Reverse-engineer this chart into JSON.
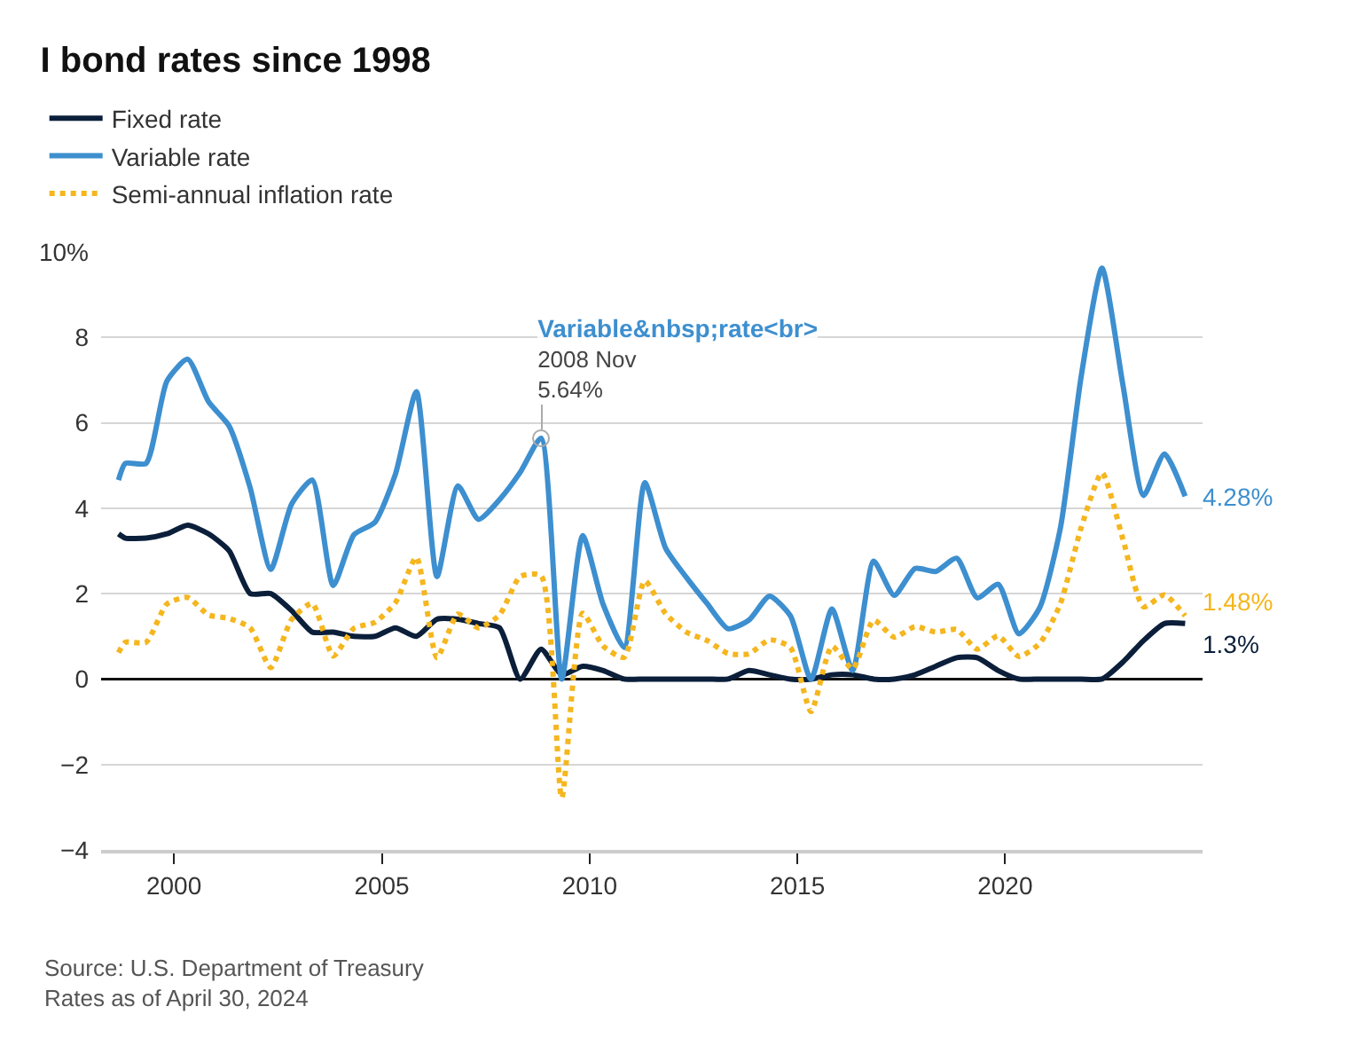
{
  "chart_data": {
    "type": "line",
    "title": "I bond rates since 1998",
    "x": [
      "1998-09",
      "1998-11",
      "1999-05",
      "1999-11",
      "2000-05",
      "2000-11",
      "2001-05",
      "2001-11",
      "2002-05",
      "2002-11",
      "2003-05",
      "2003-11",
      "2004-05",
      "2004-11",
      "2005-05",
      "2005-11",
      "2006-05",
      "2006-11",
      "2007-05",
      "2007-11",
      "2008-05",
      "2008-11",
      "2009-05",
      "2009-11",
      "2010-05",
      "2010-11",
      "2011-05",
      "2011-11",
      "2012-05",
      "2012-11",
      "2013-05",
      "2013-11",
      "2014-05",
      "2014-11",
      "2015-05",
      "2015-11",
      "2016-05",
      "2016-11",
      "2017-05",
      "2017-11",
      "2018-05",
      "2018-11",
      "2019-05",
      "2019-11",
      "2020-05",
      "2020-11",
      "2021-05",
      "2021-11",
      "2022-05",
      "2022-11",
      "2023-05",
      "2023-11",
      "2024-05"
    ],
    "series": [
      {
        "name": "Fixed rate",
        "color": "#0b1f3a",
        "line_style": "solid",
        "values": [
          3.4,
          3.3,
          3.3,
          3.4,
          3.6,
          3.4,
          3.0,
          2.0,
          2.0,
          1.6,
          1.1,
          1.1,
          1.0,
          1.0,
          1.2,
          1.0,
          1.4,
          1.4,
          1.3,
          1.2,
          0.0,
          0.7,
          0.1,
          0.3,
          0.2,
          0,
          0,
          0,
          0,
          0,
          0,
          0.2,
          0.1,
          0,
          0,
          0.1,
          0.1,
          0,
          0,
          0.1,
          0.3,
          0.5,
          0.5,
          0.2,
          0,
          0,
          0,
          0,
          0,
          0.4,
          0.9,
          1.3,
          1.3
        ]
      },
      {
        "name": "Variable rate",
        "color": "#3d8fcf",
        "line_style": "solid",
        "values": [
          4.66,
          5.05,
          5.05,
          6.98,
          7.49,
          6.49,
          5.92,
          4.48,
          2.57,
          4.1,
          4.66,
          2.19,
          3.38,
          3.67,
          4.8,
          6.73,
          2.4,
          4.52,
          3.74,
          4.2,
          4.84,
          5.64,
          0.0,
          3.36,
          1.74,
          0.74,
          4.6,
          3.06,
          2.38,
          1.76,
          1.18,
          1.38,
          1.94,
          1.48,
          0.0,
          1.64,
          0.2,
          2.76,
          1.96,
          2.59,
          2.52,
          2.83,
          1.9,
          2.22,
          1.06,
          1.68,
          3.54,
          7.12,
          9.62,
          6.89,
          4.3,
          5.27,
          4.28
        ]
      },
      {
        "name": "Semi-annual inflation rate",
        "color": "#f5b61e",
        "line_style": "dotted",
        "values": [
          0.62,
          0.86,
          0.86,
          1.76,
          1.91,
          1.5,
          1.42,
          1.2,
          0.27,
          1.4,
          1.77,
          0.54,
          1.19,
          1.33,
          1.79,
          2.85,
          0.5,
          1.52,
          1.2,
          1.5,
          2.4,
          2.42,
          -2.78,
          1.54,
          0.77,
          0.51,
          2.3,
          1.53,
          1.1,
          0.9,
          0.6,
          0.59,
          0.92,
          0.74,
          -0.76,
          0.77,
          0.24,
          1.38,
          0.98,
          1.23,
          1.1,
          1.16,
          0.7,
          1.01,
          0.53,
          0.84,
          1.77,
          3.56,
          4.83,
          3.28,
          1.69,
          1.97,
          1.48
        ]
      }
    ],
    "xlim": [
      "1998-04",
      "2024-10"
    ],
    "xticks": [
      {
        "value": "2000",
        "label": "2000"
      },
      {
        "value": "2005",
        "label": "2005"
      },
      {
        "value": "2010",
        "label": "2010"
      },
      {
        "value": "2015",
        "label": "2015"
      },
      {
        "value": "2020",
        "label": "2020"
      }
    ],
    "ylim": [
      -4,
      10
    ],
    "yticks": [
      {
        "value": -4,
        "label": "−4"
      },
      {
        "value": -2,
        "label": "−2"
      },
      0,
      2,
      4,
      6,
      8,
      {
        "value": 10,
        "label": "10%"
      }
    ],
    "grid": "y",
    "legend": "top left",
    "marker": "none",
    "annotations": [
      {
        "text": "Variable&nbsp;rate<br>\n2008 Nov\n5.64%",
        "x": "2008-11",
        "y": 5.64
      },
      {
        "text": "4.28%",
        "x": "2024-05",
        "y": 4.28
      },
      {
        "text": "1.48%",
        "x": "2024-05",
        "y": 1.48
      },
      {
        "text": "1.3%",
        "x": "2024-05",
        "y": 1.3
      },
      "Source: U.S. Department of Treasury\nRates as of April 30, 2024"
    ]
  }
}
